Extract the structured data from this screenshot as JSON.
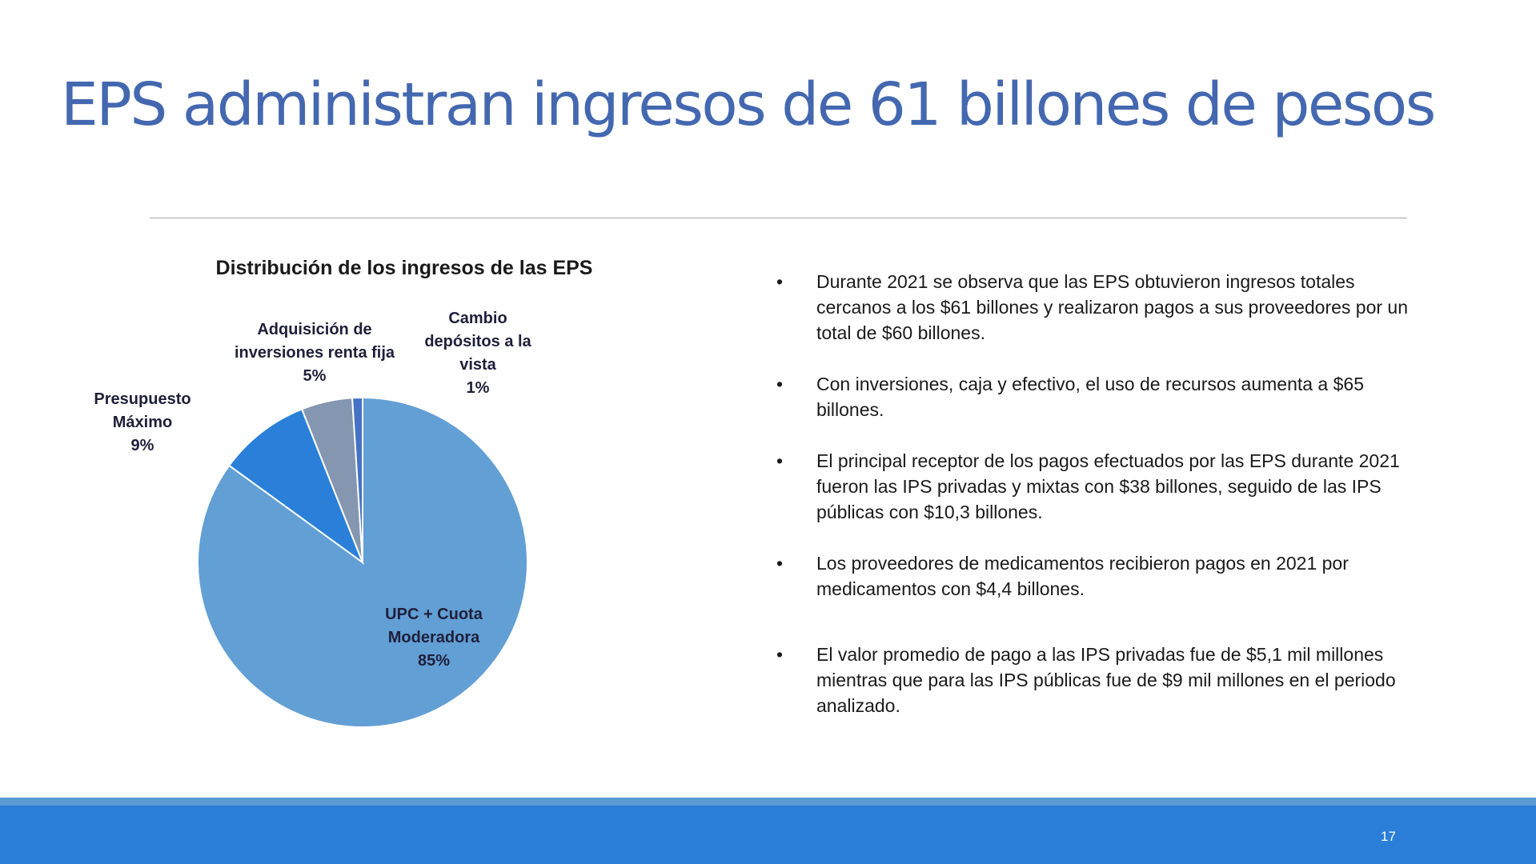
{
  "slide": {
    "title": "EPS administran ingresos de 61 billones de pesos",
    "page_number": "17"
  },
  "bullets": [
    "Durante 2021 se observa que las EPS obtuvieron ingresos totales cercanos a los $61 billones y realizaron pagos a sus proveedores por un total de $60 billones.",
    "Con inversiones, caja y efectivo, el uso de recursos aumenta a $65 billones.",
    "El principal receptor de los pagos efectuados por las EPS durante 2021 fueron las IPS privadas y mixtas con $38 billones, seguido de las IPS públicas con $10,3 billones.",
    "Los proveedores de medicamentos recibieron pagos en 2021 por medicamentos con $4,4 billones.",
    "El valor promedio de pago a las IPS privadas fue de $5,1 mil millones mientras que para las IPS públicas fue de $9 mil millones en el periodo analizado."
  ],
  "bullet_symbol": "•",
  "colors": {
    "title": "#4468b0",
    "footer_dark": "#2a7ed8",
    "footer_light": "#5b9bd5"
  },
  "chart_data": {
    "type": "pie",
    "title": "Distribución de los ingresos de las EPS",
    "series": [
      {
        "name": "UPC + Cuota Moderadora",
        "label_lines": [
          "UPC + Cuota",
          "Moderadora",
          "85%"
        ],
        "value": 85,
        "color": "#629fd5"
      },
      {
        "name": "Presupuesto Máximo",
        "label_lines": [
          "Presupuesto",
          "Máximo",
          "9%"
        ],
        "value": 9,
        "color": "#2a80d9"
      },
      {
        "name": "Adquisición de inversiones renta fija",
        "label_lines": [
          "Adquisición de",
          "inversiones renta fija",
          "5%"
        ],
        "value": 5,
        "color": "#8496b0"
      },
      {
        "name": "Cambio depósitos a la vista",
        "label_lines": [
          "Cambio",
          "depósitos a la",
          "vista",
          "1%"
        ],
        "value": 1,
        "color": "#4472c4"
      }
    ],
    "start_angle_deg": 0,
    "direction": "clockwise",
    "data_labels": "category name and percentage",
    "legend": "none"
  }
}
